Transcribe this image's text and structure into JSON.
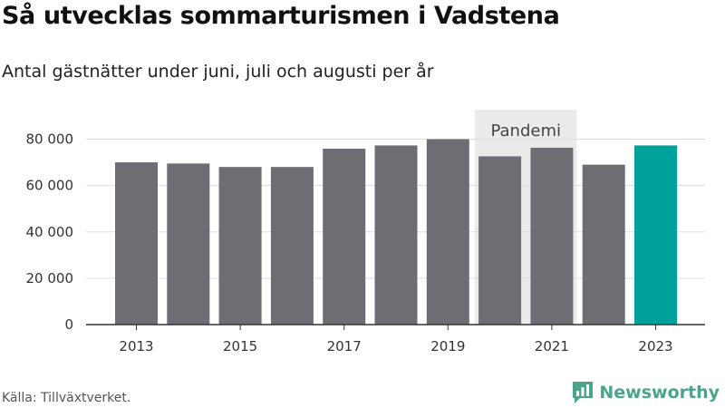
{
  "header": {
    "title": "Så utvecklas sommarturismen i Vadstena",
    "subtitle": "Antal gästnätter under juni, juli och augusti per år"
  },
  "footer": {
    "source": "Källa: Tillväxtverket.",
    "brand": "Newsworthy",
    "brand_color": "#4aa58a",
    "brand_icon": "bar-chart-logo-icon"
  },
  "chart_data": {
    "type": "bar",
    "categories": [
      "2013",
      "2014",
      "2015",
      "2016",
      "2017",
      "2018",
      "2019",
      "2020",
      "2021",
      "2022",
      "2023"
    ],
    "values": [
      70000,
      69500,
      68000,
      68000,
      75900,
      77300,
      80000,
      72600,
      76300,
      69000,
      77300
    ],
    "bar_colors": [
      "#6e6d74",
      "#6e6d74",
      "#6e6d74",
      "#6e6d74",
      "#6e6d74",
      "#6e6d74",
      "#6e6d74",
      "#6e6d74",
      "#6e6d74",
      "#6e6d74",
      "#00a19a"
    ],
    "ylim": [
      0,
      80000
    ],
    "yticks": [
      0,
      20000,
      40000,
      60000,
      80000
    ],
    "ytick_labels": [
      "0",
      "20 000",
      "40 000",
      "60 000",
      "80 000"
    ],
    "xtick_labels": [
      "2013",
      "",
      "2015",
      "",
      "2017",
      "",
      "2019",
      "",
      "2021",
      "",
      "2023"
    ],
    "grid": true,
    "annotations": [
      {
        "label": "Pandemi",
        "from": "2020",
        "to": "2021",
        "background": "#ebebeb"
      }
    ],
    "colors": {
      "default_bar": "#6e6d74",
      "highlight_bar": "#00a19a",
      "gridline": "#dddddd",
      "axis": "#333333"
    }
  }
}
